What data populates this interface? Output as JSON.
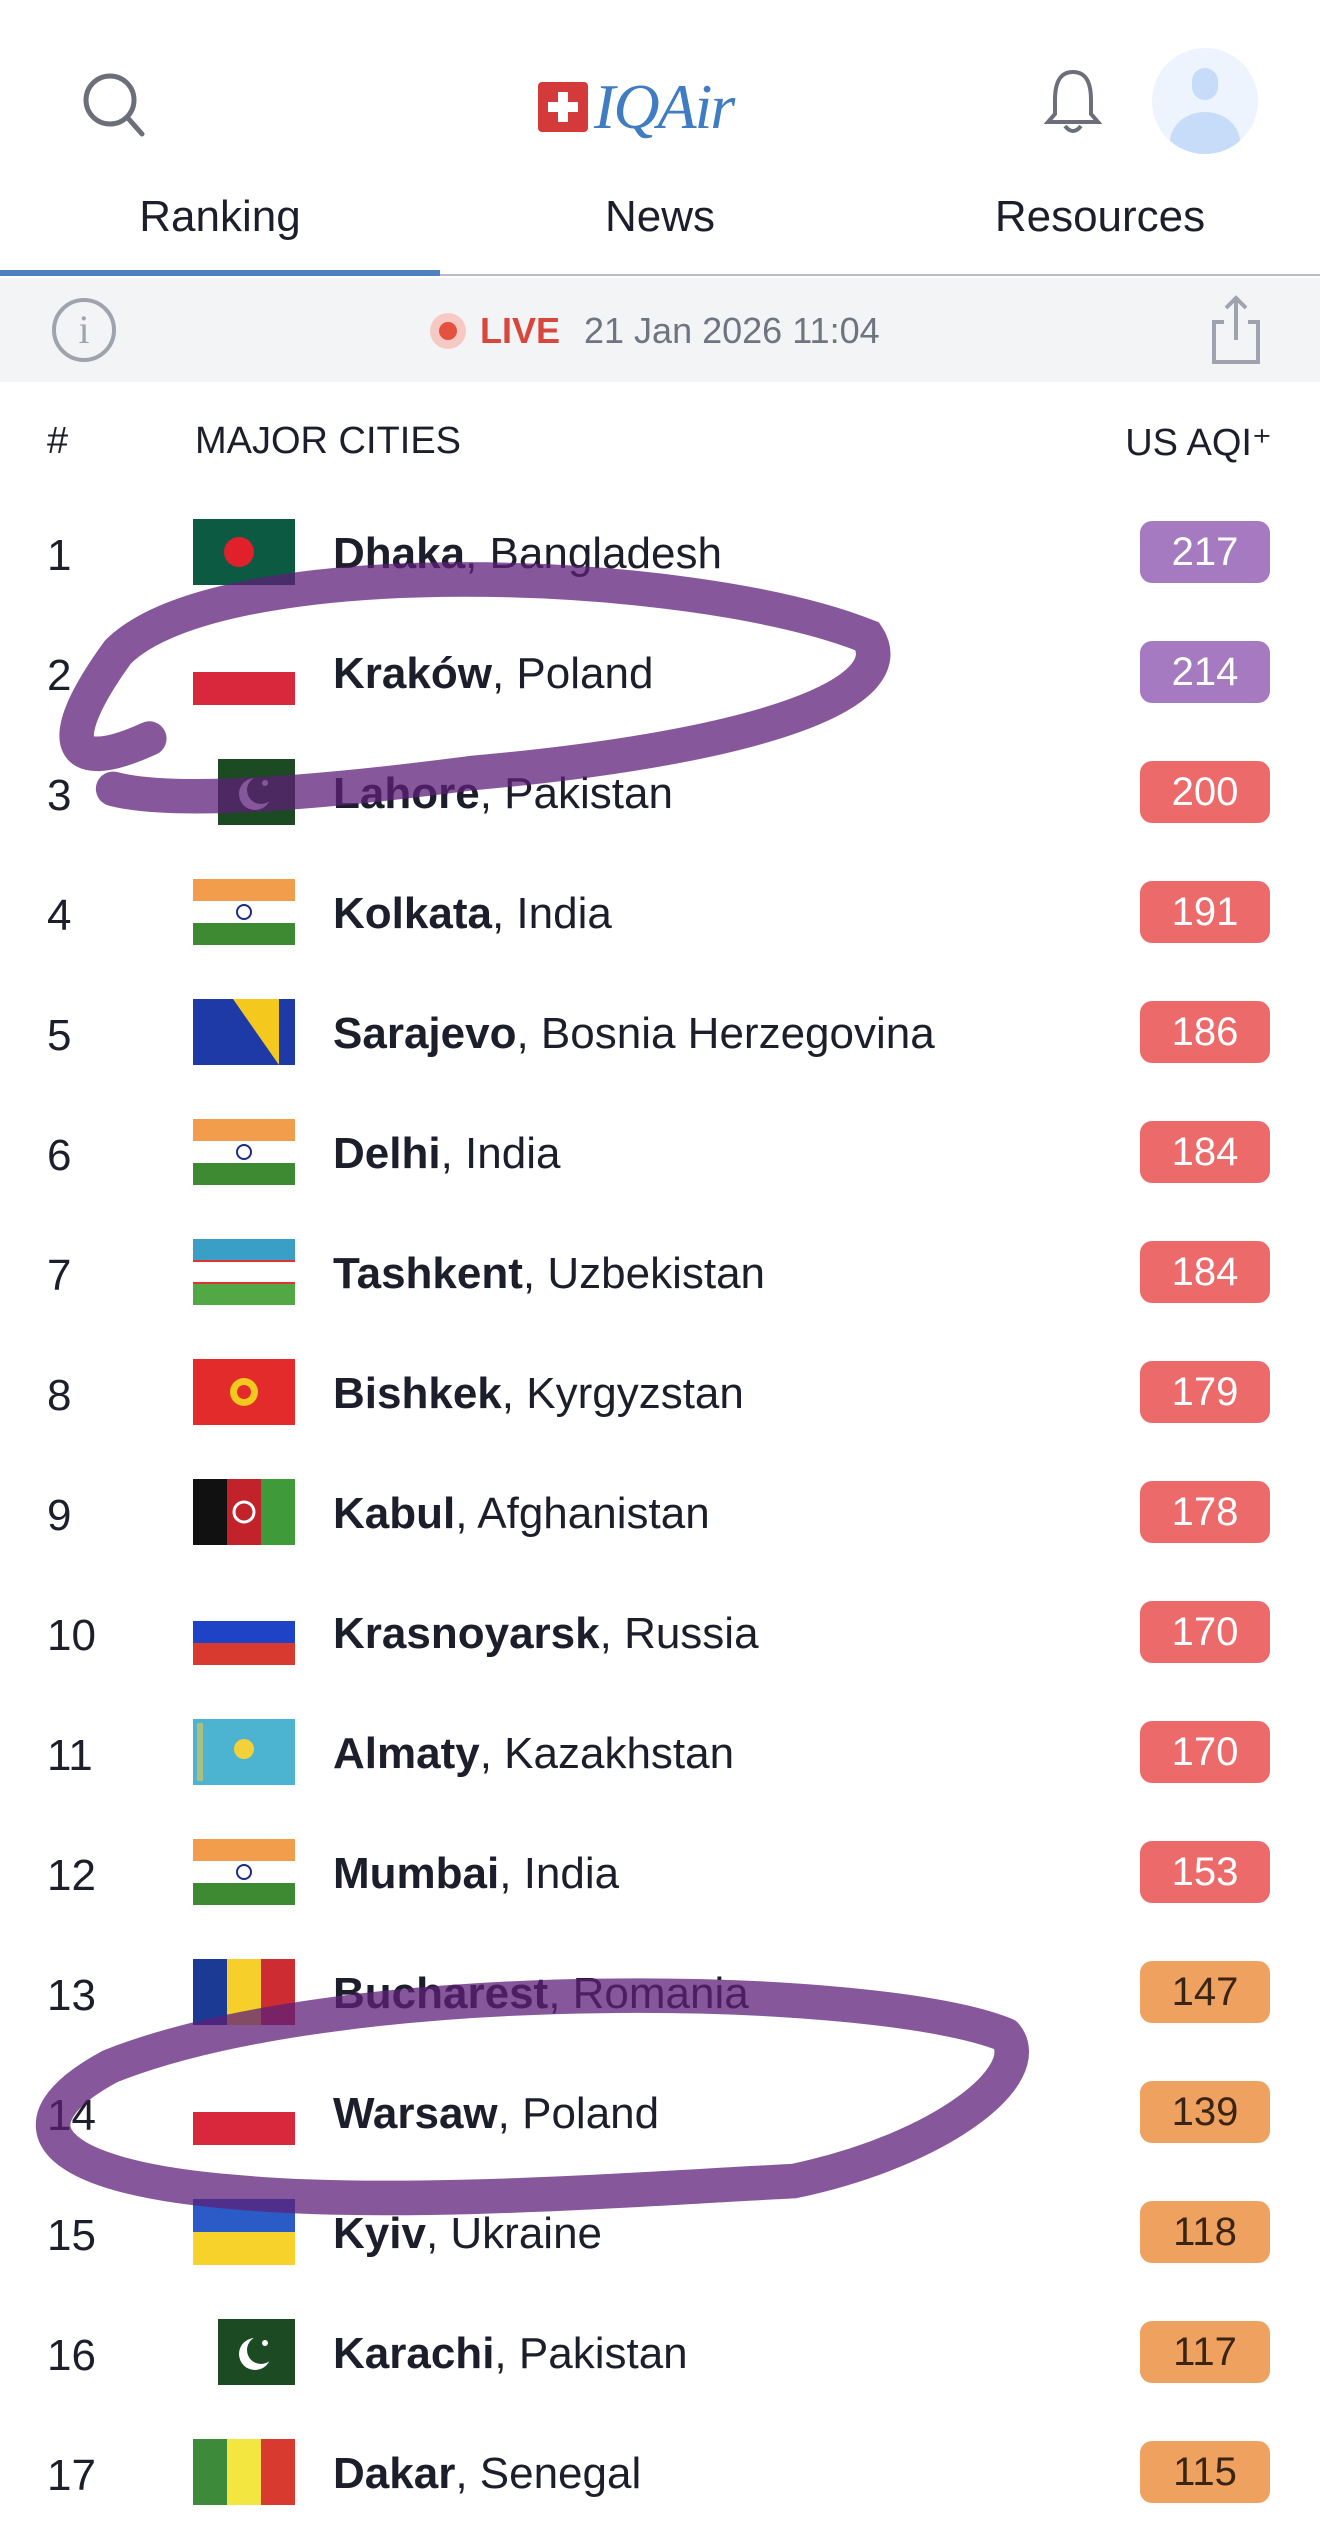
{
  "header": {
    "logo_text": "IQAir",
    "search_icon": "search-icon",
    "bell_icon": "bell-icon",
    "avatar_icon": "user-avatar-icon"
  },
  "tabs": [
    {
      "label": "Ranking",
      "active": true
    },
    {
      "label": "News",
      "active": false
    },
    {
      "label": "Resources",
      "active": false
    }
  ],
  "status": {
    "live_label": "LIVE",
    "timestamp": "21 Jan 2026 11:04",
    "info_icon": "info-icon",
    "share_icon": "share-icon"
  },
  "table": {
    "col_rank": "#",
    "col_city": "MAJOR CITIES",
    "col_aqi": "US AQI⁺",
    "rows": [
      {
        "rank": "1",
        "city": "Dhaka",
        "country": "Bangladesh",
        "aqi": "217",
        "level": "very-unhealthy"
      },
      {
        "rank": "2",
        "city": "Kraków",
        "country": "Poland",
        "aqi": "214",
        "level": "very-unhealthy"
      },
      {
        "rank": "3",
        "city": "Lahore",
        "country": "Pakistan",
        "aqi": "200",
        "level": "unhealthy"
      },
      {
        "rank": "4",
        "city": "Kolkata",
        "country": "India",
        "aqi": "191",
        "level": "unhealthy"
      },
      {
        "rank": "5",
        "city": "Sarajevo",
        "country": "Bosnia Herzegovina",
        "aqi": "186",
        "level": "unhealthy"
      },
      {
        "rank": "6",
        "city": "Delhi",
        "country": "India",
        "aqi": "184",
        "level": "unhealthy"
      },
      {
        "rank": "7",
        "city": "Tashkent",
        "country": "Uzbekistan",
        "aqi": "184",
        "level": "unhealthy"
      },
      {
        "rank": "8",
        "city": "Bishkek",
        "country": "Kyrgyzstan",
        "aqi": "179",
        "level": "unhealthy"
      },
      {
        "rank": "9",
        "city": "Kabul",
        "country": "Afghanistan",
        "aqi": "178",
        "level": "unhealthy"
      },
      {
        "rank": "10",
        "city": "Krasnoyarsk",
        "country": "Russia",
        "aqi": "170",
        "level": "unhealthy"
      },
      {
        "rank": "11",
        "city": "Almaty",
        "country": "Kazakhstan",
        "aqi": "170",
        "level": "unhealthy"
      },
      {
        "rank": "12",
        "city": "Mumbai",
        "country": "India",
        "aqi": "153",
        "level": "unhealthy"
      },
      {
        "rank": "13",
        "city": "Bucharest",
        "country": "Romania",
        "aqi": "147",
        "level": "sensitive"
      },
      {
        "rank": "14",
        "city": "Warsaw",
        "country": "Poland",
        "aqi": "139",
        "level": "sensitive"
      },
      {
        "rank": "15",
        "city": "Kyiv",
        "country": "Ukraine",
        "aqi": "118",
        "level": "sensitive"
      },
      {
        "rank": "16",
        "city": "Karachi",
        "country": "Pakistan",
        "aqi": "117",
        "level": "sensitive"
      },
      {
        "rank": "17",
        "city": "Dakar",
        "country": "Senegal",
        "aqi": "115",
        "level": "sensitive"
      }
    ]
  },
  "colors": {
    "very-unhealthy": "#a67ac1",
    "unhealthy": "#ec6a69",
    "sensitive": "#efa15f",
    "accent": "#4f81c1",
    "annotation": "#5e1f78"
  }
}
